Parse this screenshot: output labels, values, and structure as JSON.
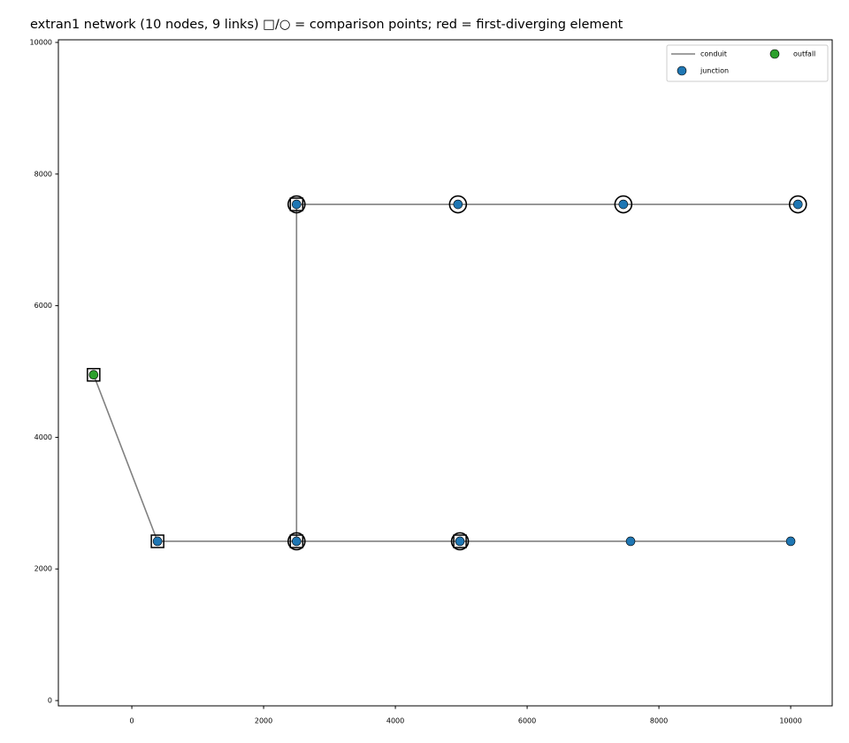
{
  "chart_data": {
    "type": "scatter",
    "title": "extran1 network  (10 nodes, 9 links)  □/○ = comparison points; red = first-diverging element",
    "xlim": [
      -1115,
      10630
    ],
    "ylim": [
      -80,
      10040
    ],
    "xticks": [
      0,
      2000,
      4000,
      6000,
      8000,
      10000
    ],
    "yticks": [
      0,
      2000,
      4000,
      6000,
      8000,
      10000
    ],
    "legend": "upper right",
    "series": [
      {
        "name": "conduit",
        "kind": "line",
        "color": "#808080",
        "x": [
          -580,
          390,
          2500,
          4980,
          7570,
          10000,
          null,
          2500,
          2500,
          4950,
          7460,
          10110
        ],
        "y": [
          4950,
          2420,
          2420,
          2420,
          2420,
          2420,
          null,
          2420,
          7540,
          7540,
          7540,
          7540
        ]
      },
      {
        "name": "junction",
        "kind": "point",
        "color": "#1f77b4",
        "x": [
          390,
          2500,
          4980,
          7570,
          10000,
          2500,
          4950,
          7460,
          10110
        ],
        "y": [
          2420,
          2420,
          2420,
          2420,
          2420,
          7540,
          7540,
          7540,
          7540
        ]
      },
      {
        "name": "outfall",
        "kind": "point",
        "color": "#2ca02c",
        "x": [
          -580
        ],
        "y": [
          4950
        ]
      }
    ],
    "comparison_points": {
      "squares": {
        "x": [
          -580,
          390,
          2500,
          4980,
          2500
        ],
        "y": [
          4950,
          2420,
          2420,
          2420,
          7540
        ]
      },
      "circles": {
        "x": [
          2500,
          4980,
          2500,
          4950,
          7460,
          10110
        ],
        "y": [
          2420,
          2420,
          7540,
          7540,
          7540,
          7540
        ]
      }
    }
  }
}
